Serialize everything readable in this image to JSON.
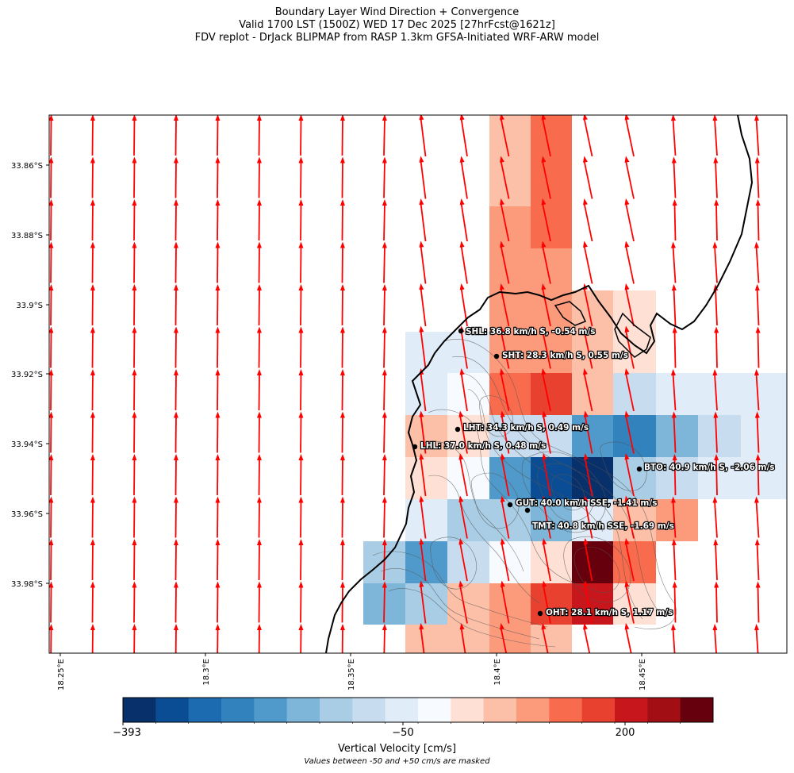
{
  "title": {
    "line1": "Boundary Layer Wind Direction + Convergence",
    "line2": "Valid 1700 LST (1500Z) WED 17 Dec 2025 [27hrFcst@1621z]",
    "line3": "FDV replot - DrJack BLIPMAP from RASP 1.3km GFSA-Initiated WRF-ARW model"
  },
  "axes": {
    "lat_ticks": [
      "33.86°S",
      "33.88°S",
      "33.9°S",
      "33.92°S",
      "33.94°S",
      "33.96°S",
      "33.98°S"
    ],
    "lon_ticks": [
      "18.25°E",
      "18.3°E",
      "18.35°E",
      "18.4°E",
      "18.45°E"
    ]
  },
  "colorbar": {
    "label": "Vertical Velocity [cm/s]",
    "note": "Values between -50 and +50 cm/s are masked",
    "tick_labels": [
      "−393",
      "−50",
      "200"
    ],
    "colors": [
      "#08306b",
      "#0b4d94",
      "#1c6bb0",
      "#3282bd",
      "#4f9acb",
      "#7db6d9",
      "#a8cde4",
      "#c8dcef",
      "#e0ecf7",
      "#f7fbff",
      "#fee1d4",
      "#fcbfa7",
      "#fc9b7c",
      "#f96b4d",
      "#e9412f",
      "#c7171c",
      "#a10f15",
      "#67000d"
    ]
  },
  "stations": [
    {
      "id": "SHL",
      "text": "SHL: 36.8 km/h S, -0.54 m/s"
    },
    {
      "id": "SHT",
      "text": "SHT: 28.3 km/h S, 0.55 m/s"
    },
    {
      "id": "LHT",
      "text": "LHT: 34.3 km/h S, 0.49 m/s"
    },
    {
      "id": "LHL",
      "text": "LHL: 37.0 km/h S, 0.48 m/s"
    },
    {
      "id": "BTO",
      "text": "BTO: 40.9 km/h S, -2.06 m/s"
    },
    {
      "id": "GUT",
      "text": "GUT: 40.0 km/h SSE, -1.41 m/s"
    },
    {
      "id": "TMT",
      "text": "TMT: 40.8 km/h SSE, -1.69 m/s"
    },
    {
      "id": "OHT",
      "text": "OHT: 28.1 km/h S, 1.17 m/s"
    }
  ],
  "colors": {
    "wind_arrow": "#ff0000",
    "coastline": "#000000",
    "contour": "#555555"
  }
}
